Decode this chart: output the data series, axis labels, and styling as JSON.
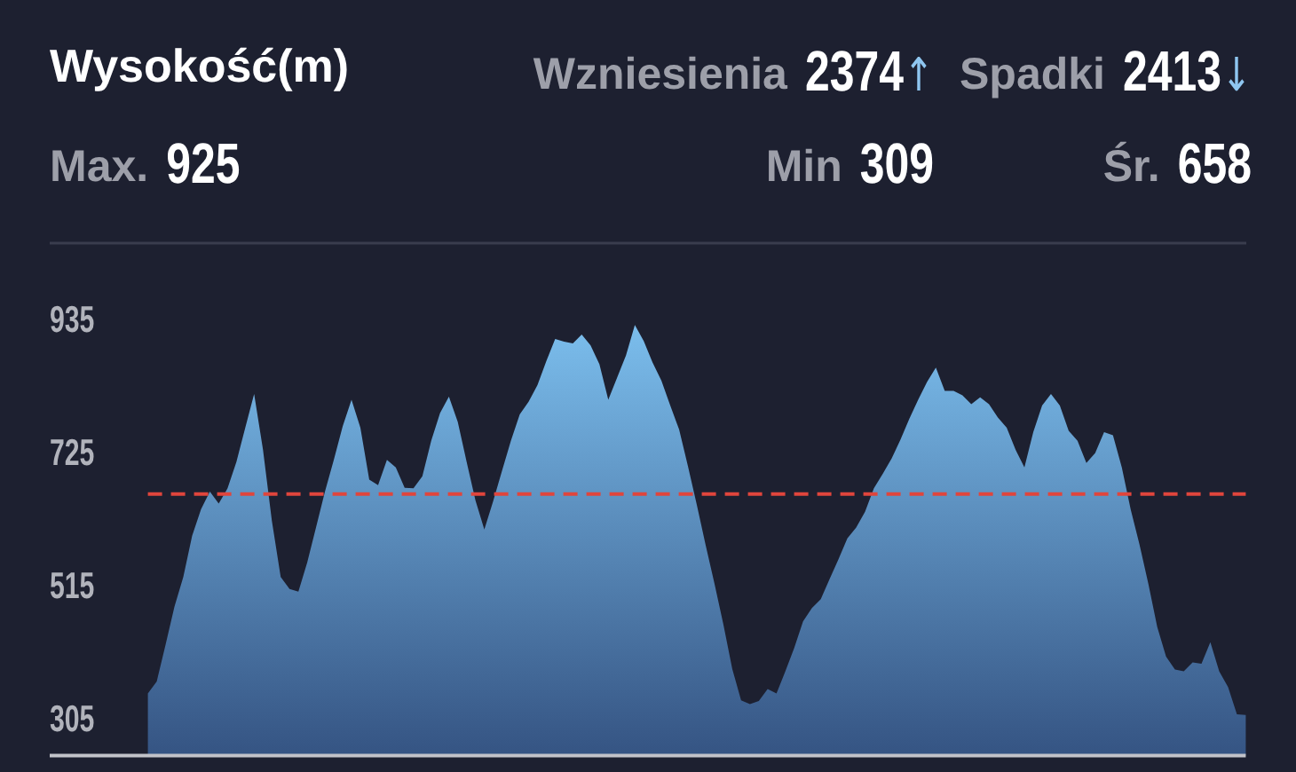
{
  "chart_data": {
    "type": "area",
    "title": "Wysokość(m)",
    "annotations": [
      "Wzniesienia 2374↑",
      "Spadki 2413↓",
      "Max. 925",
      "Min 309",
      "Śr. 658"
    ],
    "categories": [
      null,
      null,
      null,
      null,
      null,
      null,
      null,
      null,
      null,
      null,
      null,
      null,
      null,
      null,
      null,
      null,
      null,
      null,
      null,
      null,
      null,
      null,
      null,
      null,
      null,
      null,
      null,
      null,
      null,
      null,
      null,
      null,
      null,
      null,
      null,
      null,
      null,
      null,
      null,
      null,
      null,
      null,
      null,
      null,
      null,
      null,
      null,
      null,
      null,
      null,
      null,
      null,
      null,
      null,
      null,
      null,
      null,
      null,
      null,
      null,
      null,
      null,
      null,
      null,
      null,
      null,
      null,
      null,
      null,
      null,
      null,
      null,
      null,
      null,
      null,
      null,
      null,
      null,
      null,
      null,
      null,
      null,
      null,
      null,
      null,
      null,
      null,
      null,
      null,
      null,
      null,
      null,
      null,
      null,
      null,
      null,
      null,
      null,
      null,
      null,
      null,
      null,
      null,
      null,
      null,
      null,
      null,
      null,
      null,
      null,
      null,
      null,
      null,
      null,
      null,
      null,
      null,
      null,
      null,
      null,
      null,
      null,
      null,
      null,
      null
    ],
    "values": [
      343,
      362,
      420,
      480,
      527,
      592,
      634,
      662,
      643,
      667,
      709,
      763,
      816,
      728,
      616,
      527,
      508,
      504,
      550,
      606,
      662,
      712,
      765,
      807,
      763,
      681,
      672,
      712,
      700,
      668,
      667,
      686,
      742,
      786,
      812,
      772,
      709,
      648,
      602,
      647,
      695,
      742,
      784,
      804,
      830,
      868,
      903,
      899,
      896,
      910,
      893,
      863,
      807,
      842,
      877,
      925,
      900,
      866,
      837,
      798,
      760,
      702,
      641,
      577,
      516,
      452,
      382,
      332,
      326,
      331,
      350,
      343,
      378,
      415,
      457,
      478,
      492,
      524,
      555,
      588,
      605,
      630,
      667,
      690,
      714,
      744,
      777,
      807,
      835,
      858,
      821,
      821,
      814,
      800,
      811,
      800,
      779,
      763,
      728,
      700,
      756,
      798,
      816,
      798,
      758,
      742,
      707,
      723,
      756,
      751,
      700,
      634,
      578,
      516,
      448,
      401,
      381,
      378,
      392,
      390,
      424,
      378,
      353,
      310,
      309
    ],
    "color": "#7cbfee",
    "ylim": [
      245,
      935
    ],
    "yticks": [
      305,
      515,
      725,
      935
    ],
    "tick_labels": "y",
    "ref_lines": [
      {
        "axis": "y",
        "value": 658,
        "color": "#e0453c",
        "line_style": "dashed"
      }
    ]
  }
}
